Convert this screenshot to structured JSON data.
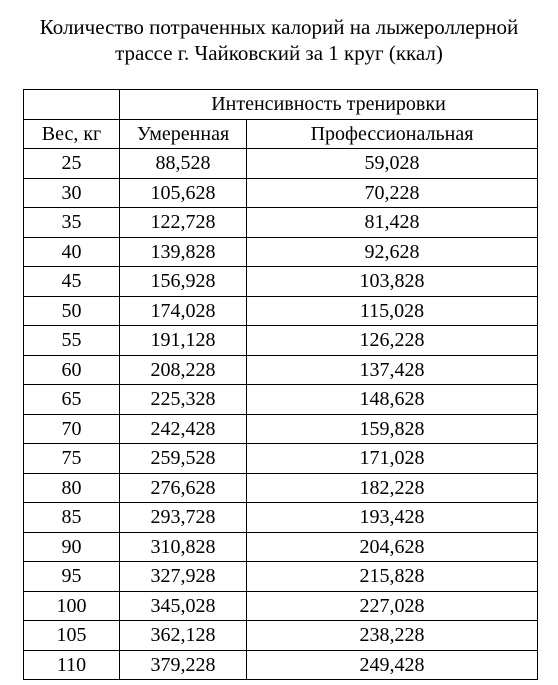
{
  "title": {
    "line1": "Количество потраченных калорий на лыжероллерной",
    "line2": "трассе г. Чайковский за 1 круг (ккал)"
  },
  "table": {
    "group_header": "Интенсивность тренировки",
    "columns": [
      "Вес, кг",
      "Умеренная",
      "Профессиональная"
    ],
    "rows": [
      [
        "25",
        "88,528",
        "59,028"
      ],
      [
        "30",
        "105,628",
        "70,228"
      ],
      [
        "35",
        "122,728",
        "81,428"
      ],
      [
        "40",
        "139,828",
        "92,628"
      ],
      [
        "45",
        "156,928",
        "103,828"
      ],
      [
        "50",
        "174,028",
        "115,028"
      ],
      [
        "55",
        "191,128",
        "126,228"
      ],
      [
        "60",
        "208,228",
        "137,428"
      ],
      [
        "65",
        "225,328",
        "148,628"
      ],
      [
        "70",
        "242,428",
        "159,828"
      ],
      [
        "75",
        "259,528",
        "171,028"
      ],
      [
        "80",
        "276,628",
        "182,228"
      ],
      [
        "85",
        "293,728",
        "193,428"
      ],
      [
        "90",
        "310,828",
        "204,628"
      ],
      [
        "95",
        "327,928",
        "215,828"
      ],
      [
        "100",
        "345,028",
        "227,028"
      ],
      [
        "105",
        "362,128",
        "238,228"
      ],
      [
        "110",
        "379,228",
        "249,428"
      ]
    ]
  }
}
